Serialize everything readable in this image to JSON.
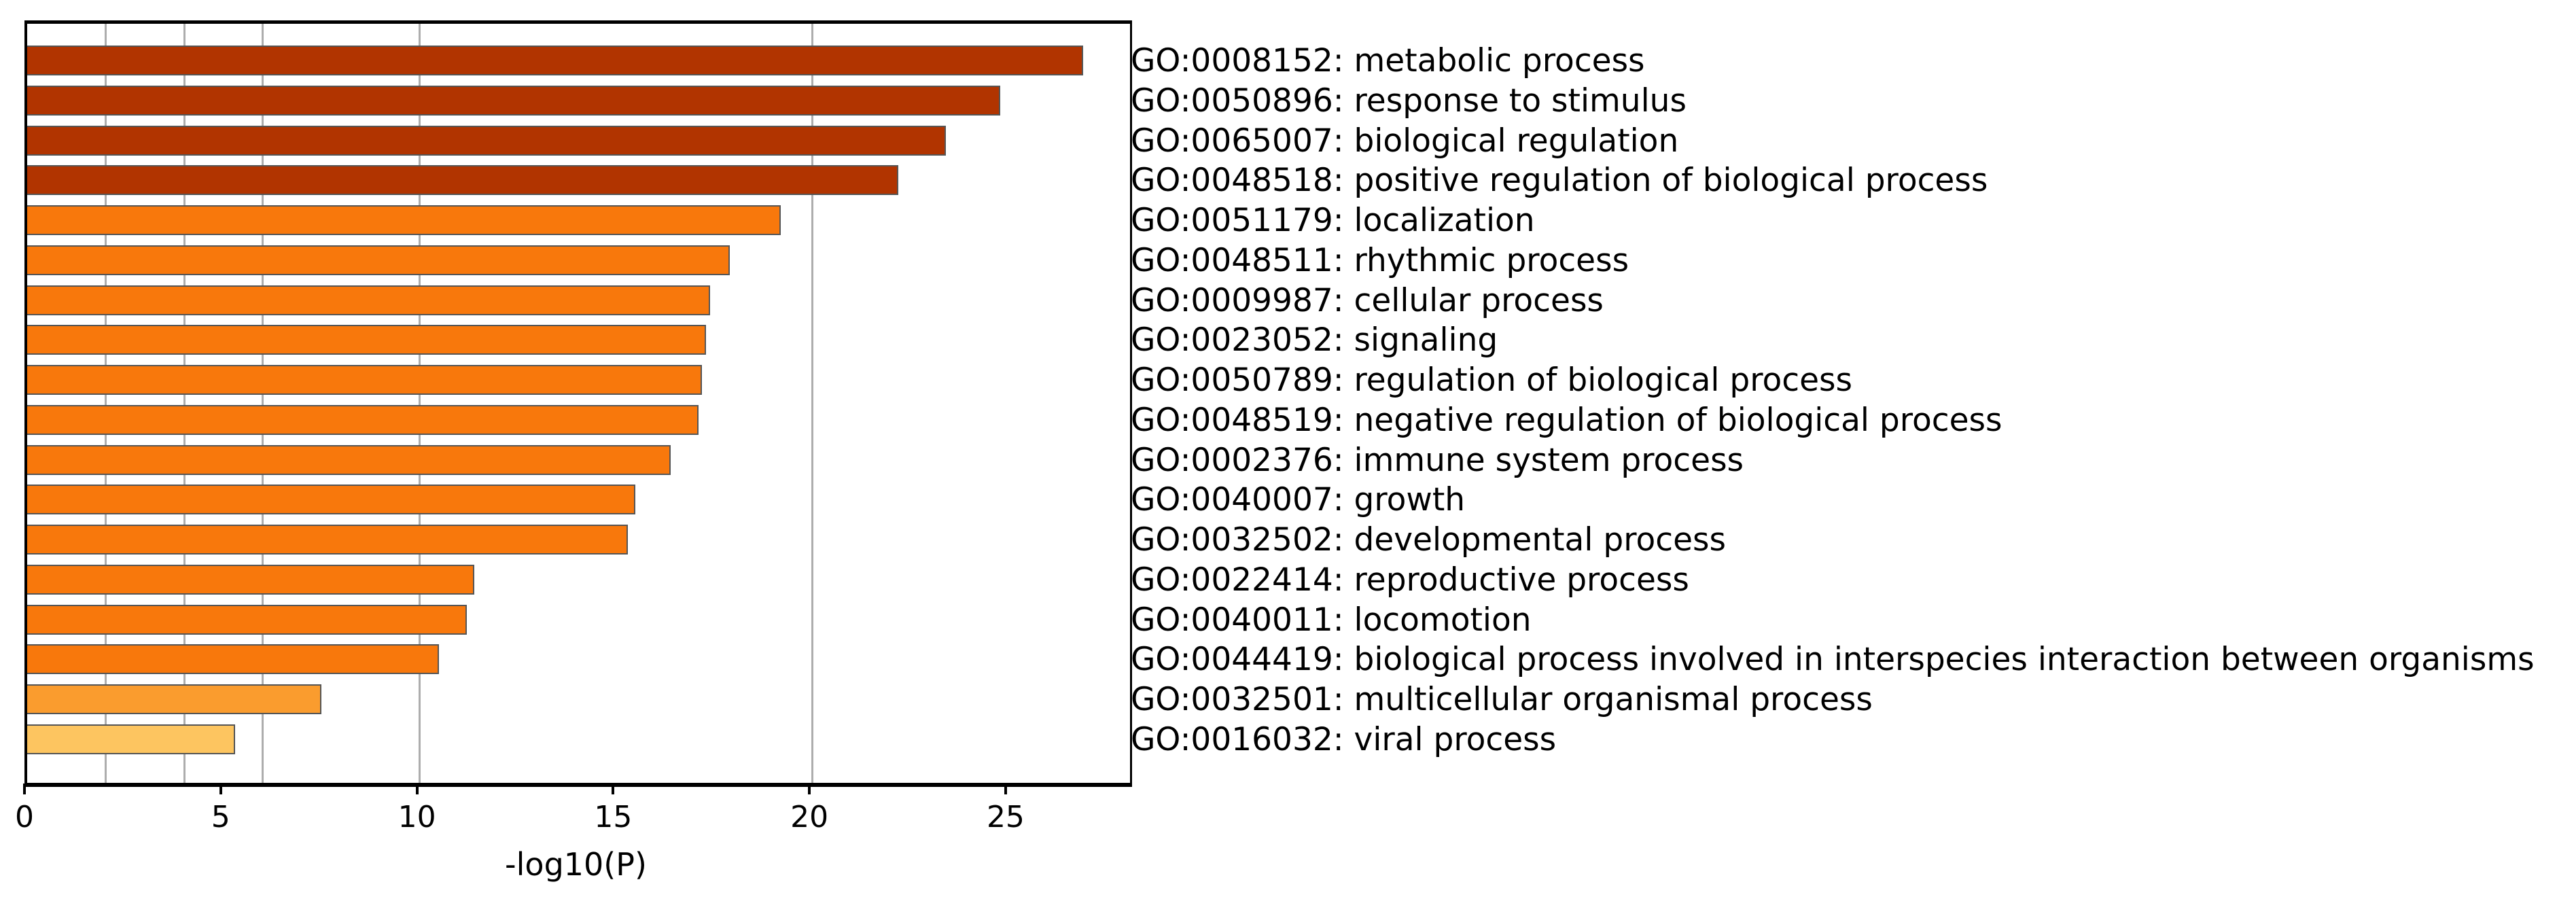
{
  "chart_data": {
    "type": "bar",
    "orientation": "horizontal",
    "title": "",
    "xlabel": "-log10(P)",
    "xlim": [
      0,
      28.1
    ],
    "x_ticks": [
      0,
      5,
      10,
      15,
      20,
      25
    ],
    "gridlines_at": [
      2,
      4,
      6,
      10,
      20
    ],
    "grid_on": true,
    "legend_position": "none",
    "categories": [
      "GO:0008152: metabolic process",
      "GO:0050896: response to stimulus",
      "GO:0065007: biological regulation",
      "GO:0048518: positive regulation of biological process",
      "GO:0051179: localization",
      "GO:0048511: rhythmic process",
      "GO:0009987: cellular process",
      "GO:0023052: signaling",
      "GO:0050789: regulation of biological process",
      "GO:0048519: negative regulation of biological process",
      "GO:0002376: immune system process",
      "GO:0040007: growth",
      "GO:0032502: developmental process",
      "GO:0022414: reproductive process",
      "GO:0040011: locomotion",
      "GO:0044419: biological process involved in interspecies interaction between organisms",
      "GO:0032501: multicellular organismal process",
      "GO:0016032: viral process"
    ],
    "values": [
      26.9,
      24.8,
      23.4,
      22.2,
      19.2,
      17.9,
      17.4,
      17.3,
      17.2,
      17.1,
      16.4,
      15.5,
      15.3,
      11.4,
      11.2,
      10.5,
      7.5,
      5.3
    ],
    "bar_colors": [
      "#B13400",
      "#B13400",
      "#B13400",
      "#B13400",
      "#F8780C",
      "#F8780C",
      "#F8780C",
      "#F8780C",
      "#F8780C",
      "#F8780C",
      "#F8780C",
      "#F8780C",
      "#F8780C",
      "#F8780C",
      "#F8780C",
      "#F8780C",
      "#FA9C2E",
      "#FDC560"
    ]
  },
  "style": {
    "background": "#FFFFFF",
    "grid_color": "#ADADAD",
    "spine_color": "#000000",
    "bar_edge_color": "#555555",
    "text_color": "#000000",
    "color_bin_dark": "#B13400",
    "color_bin_orange": "#F8780C",
    "color_bin_light_orange": "#FA9C2E",
    "color_bin_amber": "#FDC560"
  }
}
